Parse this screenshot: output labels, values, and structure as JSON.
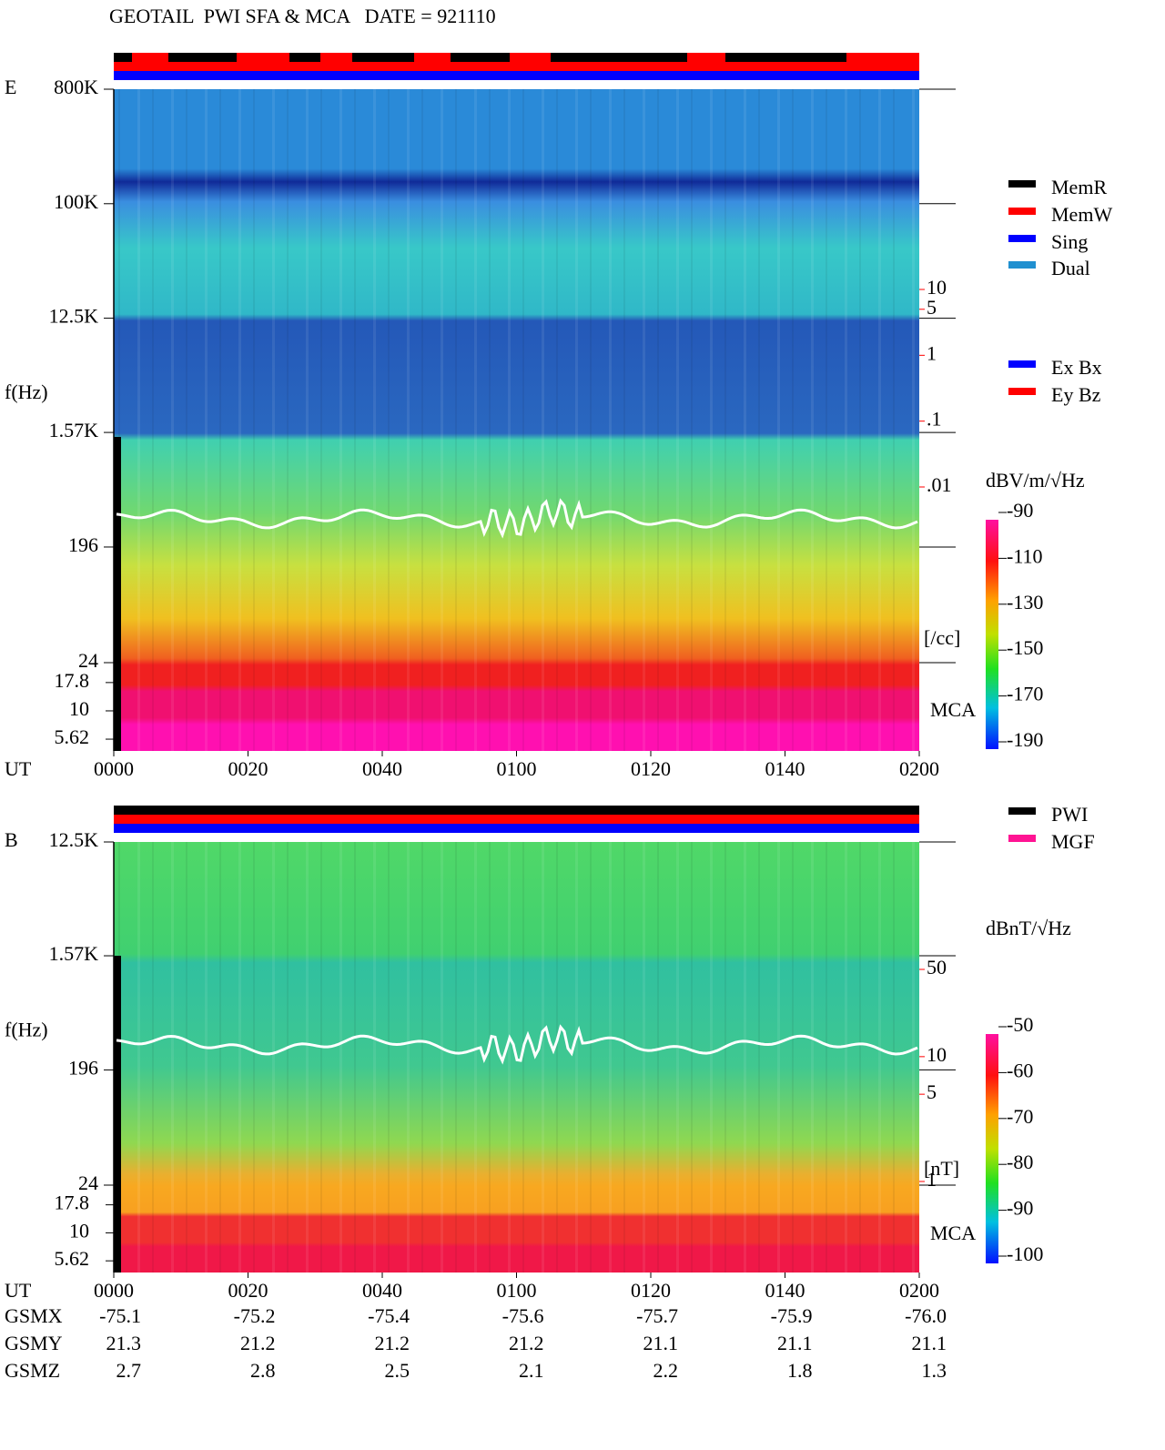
{
  "title": "GEOTAIL  PWI SFA & MCA   DATE = 921110",
  "panels": [
    {
      "type": "spectrogram",
      "label": "E",
      "y_label": "f(Hz)",
      "x_label": "UT",
      "mca_label": "MCA",
      "sfa_ylim": [
        24,
        800000
      ],
      "sfa_yticks": [
        {
          "value": 800000,
          "label": "800K"
        },
        {
          "value": 100000,
          "label": "100K"
        },
        {
          "value": 12500,
          "label": "12.5K"
        },
        {
          "value": 1570,
          "label": "1.57K"
        },
        196,
        24
      ],
      "mca_ylim": [
        4.42,
        26.7
      ],
      "mca_yticks": [
        17.8,
        10,
        5.62
      ],
      "xticks": [
        "0000",
        "0020",
        "0040",
        "0100",
        "0120",
        "0140",
        "0200"
      ],
      "right_scale": {
        "lim": [
          0.01,
          10
        ],
        "ticks": [
          10,
          5,
          1,
          {
            "value": 0.1,
            "label": ".1"
          },
          {
            "value": 0.01,
            "label": ".01"
          }
        ],
        "unit": "[/cc]"
      },
      "colorbar": {
        "label": "dBV/m/√Hz",
        "lim": [
          -190,
          -90
        ],
        "ticks": [
          -90,
          -110,
          -130,
          -150,
          -170,
          -190
        ]
      },
      "legend": [
        {
          "name": "MemR",
          "color": "#000000"
        },
        {
          "name": "MemW",
          "color": "#ff0000"
        },
        {
          "name": "Sing",
          "color": "#0000ff"
        },
        {
          "name": "Dual",
          "color": "#2090d0"
        }
      ],
      "legend2": [
        {
          "name": "Ex Bx",
          "color": "#0000ff"
        },
        {
          "name": "Ey Bz",
          "color": "#ff0000"
        }
      ]
    },
    {
      "type": "spectrogram",
      "label": "B",
      "y_label": "f(Hz)",
      "x_label": "UT",
      "mca_label": "MCA",
      "sfa_ylim": [
        24,
        12500
      ],
      "sfa_yticks": [
        {
          "value": 12500,
          "label": "12.5K"
        },
        {
          "value": 1570,
          "label": "1.57K"
        },
        196,
        24
      ],
      "mca_ylim": [
        4.42,
        26.7
      ],
      "mca_yticks": [
        17.8,
        10,
        5.62
      ],
      "xticks": [
        "0000",
        "0020",
        "0040",
        "0100",
        "0120",
        "0140",
        "0200"
      ],
      "right_scale": {
        "lim": [
          1,
          50
        ],
        "ticks": [
          50,
          10,
          5,
          1
        ],
        "unit": "[nT]"
      },
      "colorbar": {
        "label": "dBnT/√Hz",
        "lim": [
          -100,
          -50
        ],
        "ticks": [
          -50,
          -60,
          -70,
          -80,
          -90,
          -100
        ]
      },
      "legend": [
        {
          "name": "PWI",
          "color": "#000000"
        },
        {
          "name": "MGF",
          "color": "#ff1493"
        }
      ]
    }
  ],
  "orbit": {
    "rows": [
      {
        "name": "GSMX",
        "values": [
          "-75.1",
          "-75.2",
          "-75.4",
          "-75.6",
          "-75.7",
          "-75.9",
          "-76.0"
        ]
      },
      {
        "name": "GSMY",
        "values": [
          "21.3",
          "21.2",
          "21.2",
          "21.2",
          "21.1",
          "21.1",
          "21.1"
        ]
      },
      {
        "name": "GSMZ",
        "values": [
          "2.7",
          "2.8",
          "2.5",
          "2.1",
          "2.2",
          "1.8",
          "1.3"
        ]
      }
    ]
  }
}
